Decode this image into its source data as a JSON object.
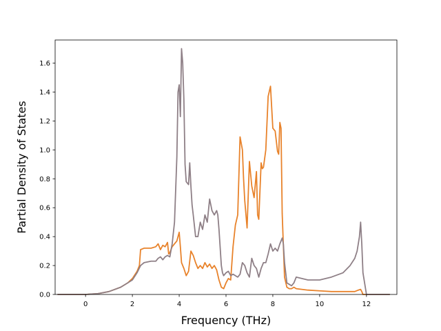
{
  "chart_data": {
    "type": "line",
    "xlabel": "Frequency (THz)",
    "ylabel": "Partial Density of States",
    "xlim": [
      -1.3,
      13.3
    ],
    "ylim": [
      0.0,
      1.76
    ],
    "xticks": [
      0,
      2,
      4,
      6,
      8,
      10,
      12
    ],
    "yticks": [
      0.0,
      0.2,
      0.4,
      0.6,
      0.8,
      1.0,
      1.2,
      1.4,
      1.6
    ],
    "xtick_labels": [
      "0",
      "2",
      "4",
      "6",
      "8",
      "10",
      "12"
    ],
    "ytick_labels": [
      "0.0",
      "0.2",
      "0.4",
      "0.6",
      "0.8",
      "1.0",
      "1.2",
      "1.4",
      "1.6"
    ],
    "grid": false,
    "legend": "none",
    "series": [
      {
        "color": "#e8822a",
        "x": [
          -1.2,
          0.0,
          0.5,
          1.0,
          1.5,
          1.8,
          2.0,
          2.2,
          2.3,
          2.35,
          2.5,
          2.8,
          3.0,
          3.1,
          3.2,
          3.3,
          3.4,
          3.5,
          3.55,
          3.6,
          3.7,
          3.8,
          3.9,
          4.0,
          4.05,
          4.1,
          4.2,
          4.3,
          4.4,
          4.5,
          4.6,
          4.7,
          4.8,
          4.9,
          5.0,
          5.1,
          5.2,
          5.3,
          5.4,
          5.5,
          5.6,
          5.7,
          5.8,
          5.9,
          6.0,
          6.1,
          6.2,
          6.3,
          6.4,
          6.5,
          6.6,
          6.7,
          6.75,
          6.8,
          6.9,
          7.0,
          7.1,
          7.2,
          7.3,
          7.35,
          7.4,
          7.5,
          7.55,
          7.6,
          7.7,
          7.8,
          7.9,
          8.0,
          8.1,
          8.2,
          8.25,
          8.3,
          8.35,
          8.4,
          8.5,
          8.6,
          8.7,
          8.8,
          8.9,
          9.0,
          9.5,
          10.0,
          10.5,
          11.0,
          11.5,
          11.65,
          11.75,
          11.8,
          11.85,
          12.0,
          13.0
        ],
        "y": [
          0.0,
          0.0,
          0.005,
          0.02,
          0.05,
          0.08,
          0.11,
          0.16,
          0.2,
          0.31,
          0.32,
          0.32,
          0.33,
          0.35,
          0.31,
          0.34,
          0.33,
          0.36,
          0.28,
          0.29,
          0.33,
          0.35,
          0.37,
          0.43,
          0.33,
          0.22,
          0.18,
          0.13,
          0.16,
          0.3,
          0.27,
          0.22,
          0.18,
          0.2,
          0.18,
          0.22,
          0.19,
          0.21,
          0.18,
          0.2,
          0.17,
          0.1,
          0.05,
          0.04,
          0.08,
          0.11,
          0.1,
          0.33,
          0.48,
          0.55,
          1.09,
          1.0,
          0.8,
          0.65,
          0.46,
          0.92,
          0.75,
          0.67,
          0.85,
          0.55,
          0.52,
          0.91,
          0.87,
          0.88,
          1.0,
          1.37,
          1.44,
          1.15,
          1.13,
          0.99,
          0.97,
          1.19,
          1.15,
          0.56,
          0.12,
          0.05,
          0.04,
          0.04,
          0.05,
          0.04,
          0.03,
          0.025,
          0.02,
          0.02,
          0.02,
          0.03,
          0.035,
          0.02,
          0.0,
          0.0,
          0.0
        ]
      },
      {
        "color": "#8e7f86",
        "x": [
          -1.2,
          0.0,
          0.5,
          1.0,
          1.5,
          1.8,
          2.0,
          2.2,
          2.35,
          2.5,
          2.8,
          3.0,
          3.1,
          3.2,
          3.3,
          3.4,
          3.5,
          3.6,
          3.7,
          3.8,
          3.9,
          3.95,
          4.0,
          4.05,
          4.1,
          4.15,
          4.2,
          4.25,
          4.3,
          4.4,
          4.45,
          4.5,
          4.55,
          4.6,
          4.7,
          4.8,
          4.9,
          5.0,
          5.1,
          5.2,
          5.3,
          5.4,
          5.5,
          5.6,
          5.65,
          5.7,
          5.8,
          5.85,
          5.9,
          6.0,
          6.1,
          6.2,
          6.3,
          6.4,
          6.5,
          6.6,
          6.7,
          6.8,
          6.9,
          7.0,
          7.1,
          7.2,
          7.3,
          7.4,
          7.5,
          7.6,
          7.7,
          7.8,
          7.9,
          8.0,
          8.1,
          8.2,
          8.3,
          8.4,
          8.45,
          8.5,
          8.6,
          8.7,
          8.8,
          8.9,
          9.0,
          9.5,
          10.0,
          10.5,
          11.0,
          11.3,
          11.5,
          11.6,
          11.65,
          11.7,
          11.75,
          11.8,
          11.85,
          12.0,
          13.0
        ],
        "y": [
          0.0,
          0.0,
          0.005,
          0.02,
          0.05,
          0.08,
          0.1,
          0.15,
          0.2,
          0.22,
          0.23,
          0.23,
          0.25,
          0.26,
          0.24,
          0.26,
          0.27,
          0.26,
          0.35,
          0.5,
          0.95,
          1.4,
          1.45,
          1.23,
          1.7,
          1.6,
          1.35,
          0.9,
          0.78,
          0.76,
          0.91,
          0.75,
          0.62,
          0.55,
          0.4,
          0.4,
          0.5,
          0.45,
          0.55,
          0.5,
          0.66,
          0.58,
          0.55,
          0.58,
          0.55,
          0.45,
          0.2,
          0.15,
          0.13,
          0.15,
          0.16,
          0.13,
          0.14,
          0.13,
          0.12,
          0.14,
          0.22,
          0.2,
          0.15,
          0.12,
          0.25,
          0.2,
          0.18,
          0.12,
          0.18,
          0.22,
          0.22,
          0.28,
          0.35,
          0.3,
          0.32,
          0.3,
          0.35,
          0.39,
          0.35,
          0.22,
          0.08,
          0.07,
          0.06,
          0.08,
          0.12,
          0.1,
          0.1,
          0.12,
          0.15,
          0.2,
          0.25,
          0.3,
          0.35,
          0.4,
          0.5,
          0.35,
          0.15,
          0.0,
          0.0
        ]
      }
    ]
  }
}
